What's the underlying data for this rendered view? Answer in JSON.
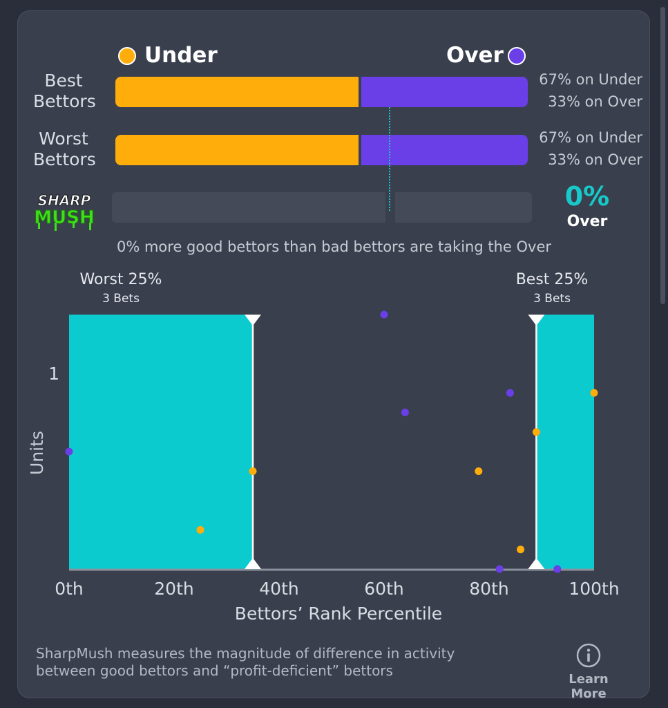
{
  "legend": {
    "under_label": "Under",
    "over_label": "Over"
  },
  "colors": {
    "under": "#ffad0a",
    "over": "#6a3fe8",
    "teal": "#0ccbcf",
    "background": "#2a2e3a",
    "card": "#3a3f4e"
  },
  "rows": [
    {
      "label_line1": "Best",
      "label_line2": "Bettors",
      "under_pct_text": "67% on Under",
      "over_pct_text": "33% on Over",
      "under_fraction": 0.67
    },
    {
      "label_line1": "Worst",
      "label_line2": "Bettors",
      "under_pct_text": "67% on Under",
      "over_pct_text": "33% on Over",
      "under_fraction": 0.67
    }
  ],
  "sharpmush": {
    "logo_top": "SHARP",
    "logo_bottom": "MUSH",
    "value": "0%",
    "value_label": "Over",
    "summary": "0% more good bettors than bad bettors are taking the Over"
  },
  "chart_data": {
    "type": "scatter",
    "xlabel": "Bettors’ Rank Percentile",
    "ylabel": "Units",
    "xlim": [
      0,
      100
    ],
    "ylim": [
      0,
      1.3
    ],
    "x_ticks": [
      "0th",
      "20th",
      "40th",
      "60th",
      "80th",
      "100th"
    ],
    "x_tick_values": [
      0,
      20,
      40,
      60,
      80,
      100
    ],
    "y_ticks": [
      "1"
    ],
    "y_tick_values": [
      1
    ],
    "regions": [
      {
        "name": "Worst 25%",
        "sub": "3 Bets",
        "x_start": 0,
        "x_end": 35
      },
      {
        "name": "Best 25%",
        "sub": "3 Bets",
        "x_start": 89,
        "x_end": 100
      }
    ],
    "series": [
      {
        "name": "Under",
        "color": "#ffad0a",
        "points": [
          [
            25,
            0.2
          ],
          [
            35,
            0.5
          ],
          [
            78,
            0.5
          ],
          [
            86,
            0.1
          ],
          [
            89,
            0.7
          ],
          [
            100,
            0.9
          ]
        ]
      },
      {
        "name": "Over",
        "color": "#6a3fe8",
        "points": [
          [
            0,
            0.6
          ],
          [
            60,
            1.3
          ],
          [
            64,
            0.8
          ],
          [
            82,
            0
          ],
          [
            84,
            0.9
          ],
          [
            93,
            0
          ]
        ]
      }
    ]
  },
  "footer": {
    "line1": "SharpMush measures the magnitude of difference in activity",
    "line2": "between good bettors and “profit-deficient” bettors",
    "info_icon": "info-icon",
    "learn_more": "Learn More"
  }
}
